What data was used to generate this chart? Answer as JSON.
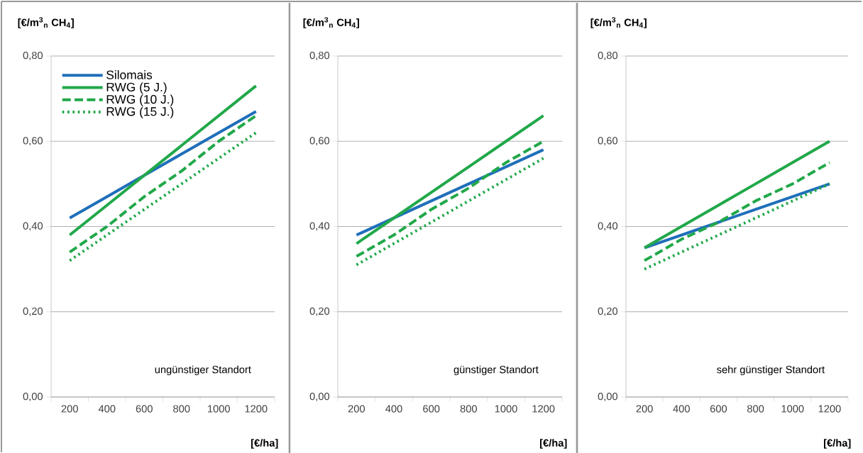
{
  "chart_data": [
    {
      "type": "line",
      "ylabel": "[€/m$^{3}$$_{n}$ CH$_{4}$]",
      "xlabel": "[€/ha]",
      "categories": [
        "200",
        "400",
        "600",
        "800",
        "1000",
        "1200"
      ],
      "series": [
        {
          "name": "Silomais",
          "color": "#1f6fba",
          "line_style": "solid",
          "values": [
            0.42,
            0.47,
            0.52,
            0.57,
            0.62,
            0.67
          ]
        },
        {
          "name": "RWG (5 J.)",
          "color": "#21a84a",
          "line_style": "solid",
          "values": [
            0.38,
            0.45,
            0.52,
            0.59,
            0.66,
            0.73
          ]
        },
        {
          "name": "RWG (10 J.)",
          "color": "#21a84a",
          "line_style": "dashed",
          "values": [
            0.34,
            0.4,
            0.47,
            0.53,
            0.6,
            0.66
          ]
        },
        {
          "name": "RWG (15 J.)",
          "color": "#21a84a",
          "line_style": "dotted",
          "values": [
            0.32,
            0.38,
            0.44,
            0.5,
            0.56,
            0.62
          ]
        }
      ],
      "ylim": [
        0,
        0.8
      ],
      "yticks": [
        {
          "value": 0,
          "label": "0,00"
        },
        {
          "value": 0.2,
          "label": "0,20"
        },
        {
          "value": 0.4,
          "label": "0,40"
        },
        {
          "value": 0.6,
          "label": "0,60"
        },
        {
          "value": 0.8,
          "label": "0,80"
        }
      ],
      "grid": "y",
      "legend": "top left",
      "annotations": [
        "ungünstiger Standort"
      ]
    },
    {
      "type": "line",
      "ylabel": "[€/m$^{3}$$_{n}$ CH$_{4}$]",
      "xlabel": "[€/ha]",
      "categories": [
        "200",
        "400",
        "600",
        "800",
        "1000",
        "1200"
      ],
      "series": [
        {
          "color": "#1f6fba",
          "line_style": "solid",
          "values": [
            0.38,
            0.42,
            0.46,
            0.5,
            0.54,
            0.58
          ]
        },
        {
          "color": "#21a84a",
          "line_style": "solid",
          "values": [
            0.36,
            0.42,
            0.48,
            0.54,
            0.6,
            0.66
          ]
        },
        {
          "color": "#21a84a",
          "line_style": "dashed",
          "values": [
            0.33,
            0.38,
            0.44,
            0.49,
            0.55,
            0.6
          ]
        },
        {
          "color": "#21a84a",
          "line_style": "dotted",
          "values": [
            0.31,
            0.36,
            0.41,
            0.46,
            0.51,
            0.56
          ]
        }
      ],
      "ylim": [
        0,
        0.8
      ],
      "yticks": [
        {
          "value": 0,
          "label": "0,00"
        },
        {
          "value": 0.2,
          "label": "0,20"
        },
        {
          "value": 0.4,
          "label": "0,40"
        },
        {
          "value": 0.6,
          "label": "0,60"
        },
        {
          "value": 0.8,
          "label": "0,80"
        }
      ],
      "grid": "y",
      "annotations": [
        "günstiger Standort"
      ]
    },
    {
      "type": "line",
      "ylabel": "[€/m$^{3}$$_{n}$ CH$_{4}$]",
      "xlabel": "[€/ha]",
      "categories": [
        "200",
        "400",
        "600",
        "800",
        "1000",
        "1200"
      ],
      "series": [
        {
          "color": "#1f6fba",
          "line_style": "solid",
          "values": [
            0.35,
            0.38,
            0.41,
            0.44,
            0.47,
            0.5
          ]
        },
        {
          "color": "#21a84a",
          "line_style": "solid",
          "values": [
            0.35,
            0.4,
            0.45,
            0.5,
            0.55,
            0.6
          ]
        },
        {
          "color": "#21a84a",
          "line_style": "dashed",
          "values": [
            0.32,
            0.37,
            0.41,
            0.46,
            0.5,
            0.55
          ]
        },
        {
          "color": "#21a84a",
          "line_style": "dotted",
          "values": [
            0.3,
            0.34,
            0.38,
            0.42,
            0.46,
            0.5
          ]
        }
      ],
      "ylim": [
        0,
        0.8
      ],
      "yticks": [
        {
          "value": 0,
          "label": "0,00"
        },
        {
          "value": 0.2,
          "label": "0,20"
        },
        {
          "value": 0.4,
          "label": "0,40"
        },
        {
          "value": 0.6,
          "label": "0,60"
        },
        {
          "value": 0.8,
          "label": "0,80"
        }
      ],
      "grid": "y",
      "annotations": [
        "sehr günstiger Standort"
      ]
    }
  ]
}
